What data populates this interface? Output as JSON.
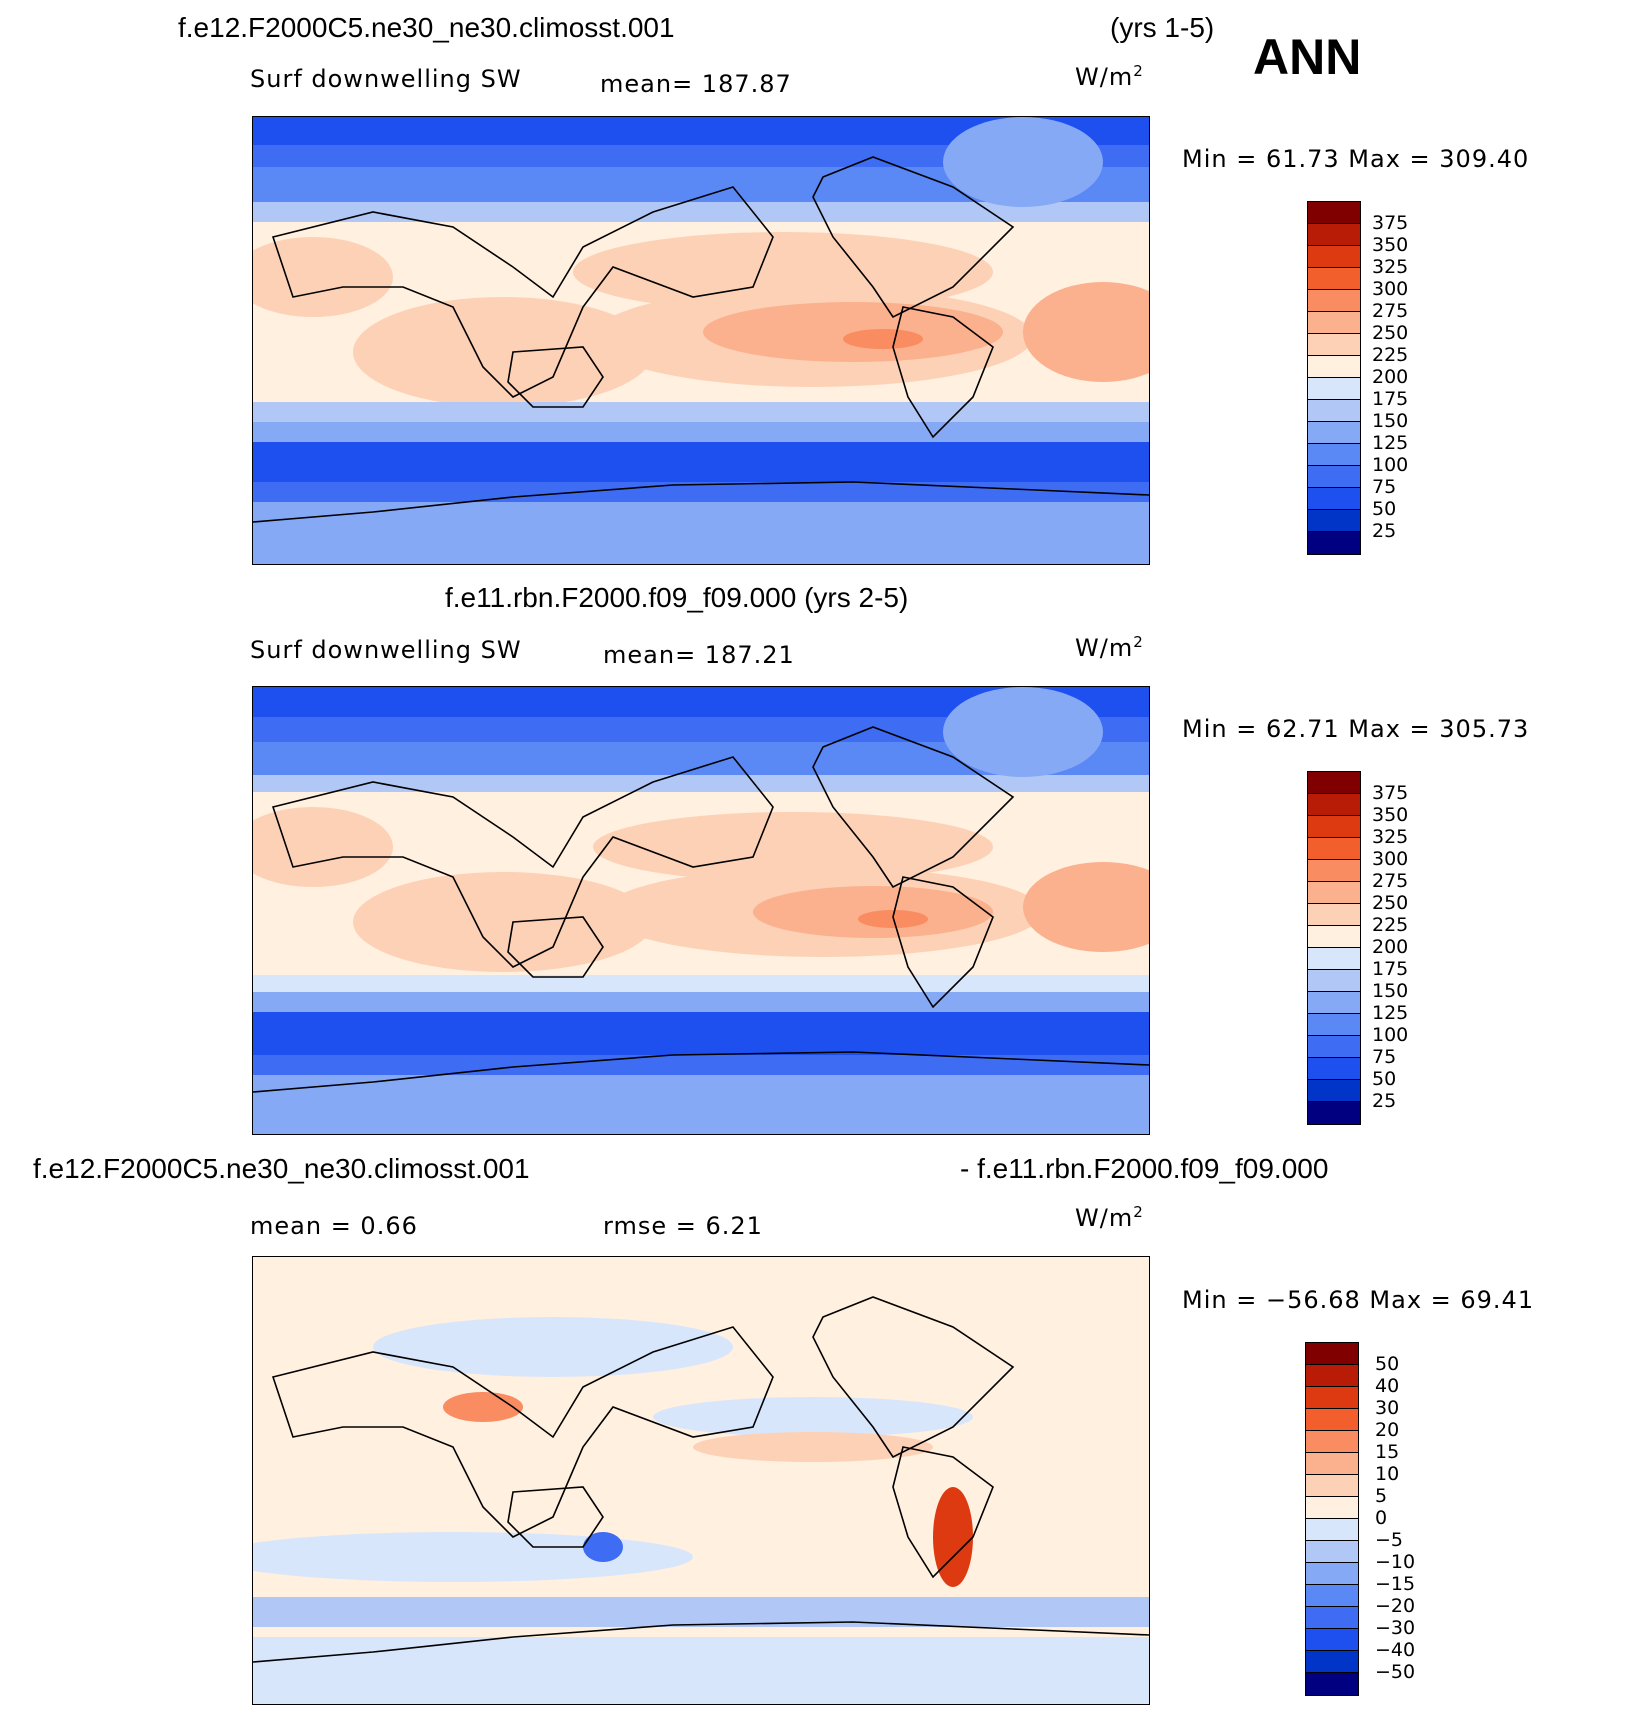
{
  "season": "ANN",
  "colors": {
    "abs_levels": [
      "#000080",
      "#00209f",
      "#0035c8",
      "#1e50f0",
      "#3e6cf2",
      "#5a88f5",
      "#86a9f6",
      "#b1c8f7",
      "#d8e6fb",
      "#fff0e0",
      "#fdd1b6",
      "#fbb08e",
      "#f98c60",
      "#f25f2c",
      "#de3a12",
      "#b81c06",
      "#800000"
    ],
    "diff_levels": [
      "#000080",
      "#00209f",
      "#0035c8",
      "#1e50f0",
      "#3e6cf2",
      "#5a88f5",
      "#86a9f6",
      "#b1c8f7",
      "#d8e6fb",
      "#fff0e0",
      "#fdd1b6",
      "#fbb08e",
      "#f98c60",
      "#f25f2c",
      "#de3a12",
      "#b81c06",
      "#800000"
    ]
  },
  "panels": [
    {
      "case_title": "f.e12.F2000C5.ne30_ne30.climosst.001",
      "years": "(yrs 1-5)",
      "variable": "Surf downwelling SW",
      "stat": "mean=  187.87",
      "units_base": "W/m",
      "units_exp": "2",
      "minmax": "Min =   61.73  Max  =  309.40",
      "colorbar_labels": [
        "375",
        "350",
        "325",
        "300",
        "275",
        "250",
        "225",
        "200",
        "175",
        "150",
        "125",
        "100",
        "75",
        "50",
        "25"
      ]
    },
    {
      "case_title": "f.e11.rbn.F2000.f09_f09.000 (yrs 2-5)",
      "variable": "Surf downwelling SW",
      "stat": "mean=  187.21",
      "units_base": "W/m",
      "units_exp": "2",
      "minmax": "Min =   62.71  Max  =  305.73",
      "colorbar_labels": [
        "375",
        "350",
        "325",
        "300",
        "275",
        "250",
        "225",
        "200",
        "175",
        "150",
        "125",
        "100",
        "75",
        "50",
        "25"
      ]
    },
    {
      "case_left": "f.e12.F2000C5.ne30_ne30.climosst.001",
      "case_right": "- f.e11.rbn.F2000.f09_f09.000",
      "mean": "mean  =    0.66",
      "rmse": "rmse  =    6.21",
      "units_base": "W/m",
      "units_exp": "2",
      "minmax": "Min  = −56.68  Max  =   69.41",
      "colorbar_labels": [
        "50",
        "40",
        "30",
        "20",
        "15",
        "10",
        "5",
        "0",
        "−5",
        "−10",
        "−15",
        "−20",
        "−30",
        "−40",
        "−50"
      ]
    }
  ]
}
